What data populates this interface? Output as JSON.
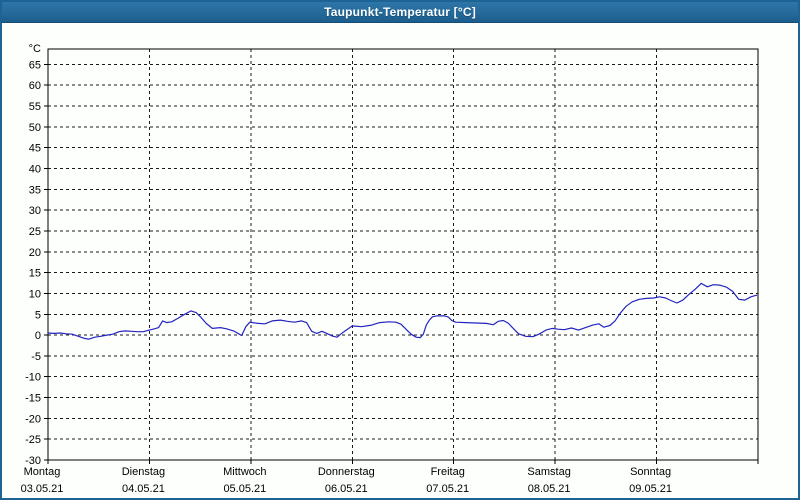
{
  "window": {
    "title": "Taupunkt-Temperatur [°C]"
  },
  "colors": {
    "titlebar": "#226696",
    "window_border": "#1d6394",
    "background": "#fdfffd",
    "plot_border": "#000000",
    "grid": "#1a1a1a",
    "line": "#2323c0",
    "title_text": "#ffffff"
  },
  "chart_data": {
    "type": "line",
    "title": "Taupunkt-Temperatur [°C]",
    "ylabel": "°C",
    "ylim": [
      -30,
      68.7
    ],
    "yticks": {
      "min": -30,
      "max": 65,
      "step": 5
    },
    "grid": "dashed",
    "legend": "none",
    "x_axis_days": [
      {
        "weekday": "Montag",
        "date": "03.05.21"
      },
      {
        "weekday": "Dienstag",
        "date": "04.05.21"
      },
      {
        "weekday": "Mittwoch",
        "date": "05.05.21"
      },
      {
        "weekday": "Donnerstag",
        "date": "06.05.21"
      },
      {
        "weekday": "Freitag",
        "date": "07.05.21"
      },
      {
        "weekday": "Samstag",
        "date": "08.05.21"
      },
      {
        "weekday": "Sonntag",
        "date": "09.05.21"
      }
    ],
    "series": [
      {
        "name": "Taupunkt-Temperatur",
        "color": "#2323c0",
        "x_unit": "days_since_monday_0300521",
        "points": [
          [
            0.0,
            0.5
          ],
          [
            0.06,
            0.4
          ],
          [
            0.12,
            0.5
          ],
          [
            0.18,
            0.3
          ],
          [
            0.24,
            0.2
          ],
          [
            0.3,
            -0.3
          ],
          [
            0.36,
            -0.8
          ],
          [
            0.4,
            -1.0
          ],
          [
            0.46,
            -0.5
          ],
          [
            0.52,
            -0.3
          ],
          [
            0.58,
            0.0
          ],
          [
            0.64,
            0.2
          ],
          [
            0.7,
            0.8
          ],
          [
            0.76,
            1.0
          ],
          [
            0.82,
            0.9
          ],
          [
            0.88,
            0.8
          ],
          [
            0.94,
            0.8
          ],
          [
            1.0,
            1.2
          ],
          [
            1.05,
            1.5
          ],
          [
            1.09,
            1.8
          ],
          [
            1.13,
            3.4
          ],
          [
            1.17,
            3.0
          ],
          [
            1.22,
            3.2
          ],
          [
            1.28,
            4.0
          ],
          [
            1.34,
            4.9
          ],
          [
            1.41,
            5.8
          ],
          [
            1.46,
            5.4
          ],
          [
            1.51,
            4.2
          ],
          [
            1.56,
            2.8
          ],
          [
            1.62,
            1.6
          ],
          [
            1.7,
            1.8
          ],
          [
            1.76,
            1.5
          ],
          [
            1.83,
            1.0
          ],
          [
            1.88,
            0.3
          ],
          [
            1.91,
            -0.1
          ],
          [
            1.95,
            2.0
          ],
          [
            1.99,
            3.1
          ],
          [
            2.07,
            2.8
          ],
          [
            2.14,
            2.7
          ],
          [
            2.21,
            3.4
          ],
          [
            2.29,
            3.6
          ],
          [
            2.36,
            3.3
          ],
          [
            2.43,
            3.1
          ],
          [
            2.5,
            3.4
          ],
          [
            2.55,
            3.0
          ],
          [
            2.6,
            0.9
          ],
          [
            2.65,
            0.4
          ],
          [
            2.7,
            0.9
          ],
          [
            2.75,
            0.4
          ],
          [
            2.8,
            -0.2
          ],
          [
            2.85,
            -0.5
          ],
          [
            2.89,
            0.3
          ],
          [
            2.94,
            1.2
          ],
          [
            3.0,
            2.2
          ],
          [
            3.09,
            2.0
          ],
          [
            3.19,
            2.4
          ],
          [
            3.27,
            3.0
          ],
          [
            3.36,
            3.2
          ],
          [
            3.43,
            3.1
          ],
          [
            3.48,
            2.6
          ],
          [
            3.53,
            1.4
          ],
          [
            3.58,
            0.2
          ],
          [
            3.63,
            -0.5
          ],
          [
            3.67,
            -0.6
          ],
          [
            3.7,
            0.2
          ],
          [
            3.73,
            2.4
          ],
          [
            3.76,
            3.6
          ],
          [
            3.79,
            4.4
          ],
          [
            3.83,
            4.6
          ],
          [
            3.91,
            4.6
          ],
          [
            3.95,
            4.3
          ],
          [
            3.98,
            3.5
          ],
          [
            4.02,
            3.1
          ],
          [
            4.12,
            3.0
          ],
          [
            4.22,
            2.9
          ],
          [
            4.32,
            2.8
          ],
          [
            4.39,
            2.5
          ],
          [
            4.44,
            3.3
          ],
          [
            4.49,
            3.5
          ],
          [
            4.54,
            2.8
          ],
          [
            4.59,
            1.5
          ],
          [
            4.64,
            0.3
          ],
          [
            4.71,
            -0.3
          ],
          [
            4.78,
            -0.4
          ],
          [
            4.84,
            0.2
          ],
          [
            4.91,
            1.2
          ],
          [
            4.97,
            1.6
          ],
          [
            5.03,
            1.4
          ],
          [
            5.09,
            1.3
          ],
          [
            5.16,
            1.7
          ],
          [
            5.23,
            1.2
          ],
          [
            5.3,
            1.8
          ],
          [
            5.37,
            2.4
          ],
          [
            5.43,
            2.7
          ],
          [
            5.48,
            1.9
          ],
          [
            5.54,
            2.3
          ],
          [
            5.59,
            3.4
          ],
          [
            5.64,
            5.2
          ],
          [
            5.7,
            6.9
          ],
          [
            5.76,
            8.0
          ],
          [
            5.83,
            8.6
          ],
          [
            5.9,
            8.8
          ],
          [
            5.97,
            8.9
          ],
          [
            6.03,
            9.2
          ],
          [
            6.09,
            8.9
          ],
          [
            6.14,
            8.3
          ],
          [
            6.2,
            7.7
          ],
          [
            6.26,
            8.4
          ],
          [
            6.32,
            9.8
          ],
          [
            6.38,
            11.0
          ],
          [
            6.44,
            12.4
          ],
          [
            6.5,
            11.6
          ],
          [
            6.56,
            12.1
          ],
          [
            6.62,
            12.0
          ],
          [
            6.69,
            11.5
          ],
          [
            6.75,
            10.5
          ],
          [
            6.81,
            8.6
          ],
          [
            6.87,
            8.4
          ],
          [
            6.93,
            9.2
          ],
          [
            6.99,
            9.6
          ]
        ]
      }
    ]
  }
}
